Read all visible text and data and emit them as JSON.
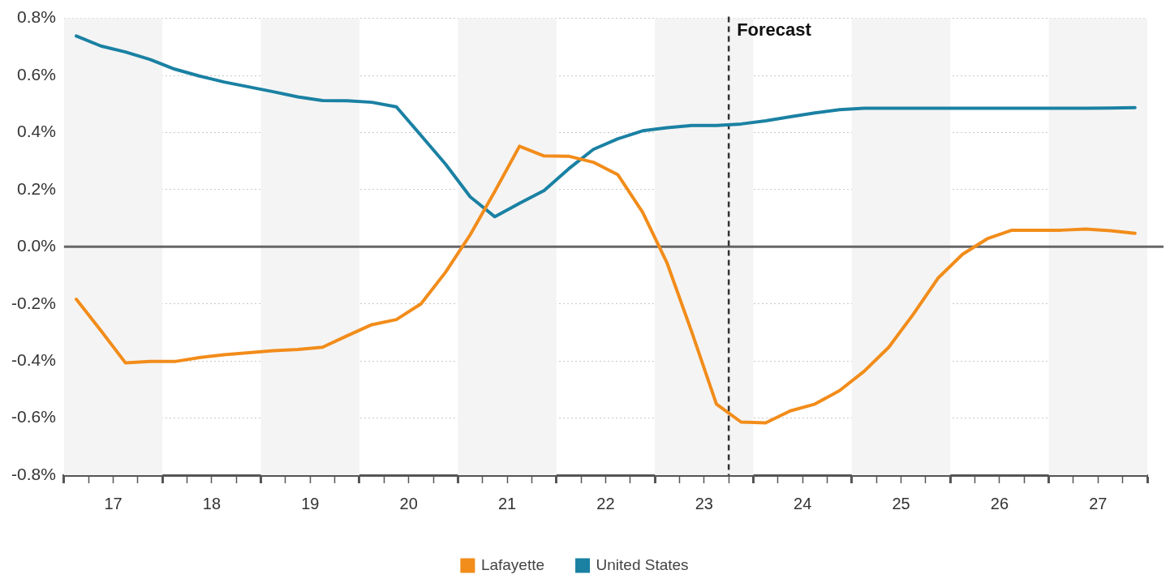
{
  "chart_data": {
    "type": "line",
    "x": [
      17.125,
      17.375,
      17.625,
      17.875,
      18.125,
      18.375,
      18.625,
      18.875,
      19.125,
      19.375,
      19.625,
      19.875,
      20.125,
      20.375,
      20.625,
      20.875,
      21.125,
      21.375,
      21.625,
      21.875,
      22.125,
      22.375,
      22.625,
      22.875,
      23.125,
      23.375,
      23.625,
      23.875,
      24.125,
      24.375,
      24.625,
      24.875,
      25.125,
      25.375,
      25.625,
      25.875,
      26.125,
      26.375,
      26.625,
      26.875,
      27.125,
      27.375,
      27.625,
      27.875
    ],
    "series": [
      {
        "name": "Lafayette",
        "color": "#f28c1a",
        "values": [
          -0.184,
          -0.294,
          -0.407,
          -0.402,
          -0.402,
          -0.388,
          -0.378,
          -0.371,
          -0.364,
          -0.36,
          -0.352,
          -0.312,
          -0.273,
          -0.255,
          -0.2,
          -0.089,
          0.042,
          0.194,
          0.352,
          0.318,
          0.317,
          0.296,
          0.252,
          0.121,
          -0.058,
          -0.299,
          -0.551,
          -0.614,
          -0.617,
          -0.575,
          -0.551,
          -0.504,
          -0.436,
          -0.352,
          -0.236,
          -0.11,
          -0.026,
          0.028,
          0.058,
          0.058,
          0.058,
          0.062,
          0.056,
          0.047
        ]
      },
      {
        "name": "United States",
        "color": "#1a81a3",
        "values": [
          0.738,
          0.703,
          0.682,
          0.656,
          0.622,
          0.598,
          0.577,
          0.56,
          0.543,
          0.525,
          0.512,
          0.511,
          0.506,
          0.49,
          0.39,
          0.289,
          0.175,
          0.105,
          0.152,
          0.197,
          0.273,
          0.341,
          0.378,
          0.406,
          0.417,
          0.425,
          0.425,
          0.43,
          0.441,
          0.455,
          0.469,
          0.48,
          0.485,
          0.485,
          0.485,
          0.485,
          0.485,
          0.485,
          0.485,
          0.485,
          0.485,
          0.485,
          0.486,
          0.487
        ]
      }
    ],
    "xlim": [
      17,
      28
    ],
    "xticks": [
      {
        "value": 17,
        "label": null
      },
      {
        "value": 17.25,
        "label": null
      },
      {
        "value": 17.5,
        "label": "17"
      },
      {
        "value": 17.75,
        "label": null
      },
      {
        "value": 18,
        "label": null
      },
      {
        "value": 18.25,
        "label": null
      },
      {
        "value": 18.5,
        "label": "18"
      },
      {
        "value": 18.75,
        "label": null
      },
      {
        "value": 19,
        "label": null
      },
      {
        "value": 19.25,
        "label": null
      },
      {
        "value": 19.5,
        "label": "19"
      },
      {
        "value": 19.75,
        "label": null
      },
      {
        "value": 20,
        "label": null
      },
      {
        "value": 20.25,
        "label": null
      },
      {
        "value": 20.5,
        "label": "20"
      },
      {
        "value": 20.75,
        "label": null
      },
      {
        "value": 21,
        "label": null
      },
      {
        "value": 21.25,
        "label": null
      },
      {
        "value": 21.5,
        "label": "21"
      },
      {
        "value": 21.75,
        "label": null
      },
      {
        "value": 22,
        "label": null
      },
      {
        "value": 22.25,
        "label": null
      },
      {
        "value": 22.5,
        "label": "22"
      },
      {
        "value": 22.75,
        "label": null
      },
      {
        "value": 23,
        "label": null
      },
      {
        "value": 23.25,
        "label": null
      },
      {
        "value": 23.5,
        "label": "23"
      },
      {
        "value": 23.75,
        "label": null
      },
      {
        "value": 24,
        "label": null
      },
      {
        "value": 24.25,
        "label": null
      },
      {
        "value": 24.5,
        "label": "24"
      },
      {
        "value": 24.75,
        "label": null
      },
      {
        "value": 25,
        "label": null
      },
      {
        "value": 25.25,
        "label": null
      },
      {
        "value": 25.5,
        "label": "25"
      },
      {
        "value": 25.75,
        "label": null
      },
      {
        "value": 26,
        "label": null
      },
      {
        "value": 26.25,
        "label": null
      },
      {
        "value": 26.5,
        "label": "26"
      },
      {
        "value": 26.75,
        "label": null
      },
      {
        "value": 27,
        "label": null
      },
      {
        "value": 27.25,
        "label": null
      },
      {
        "value": 27.5,
        "label": "27"
      },
      {
        "value": 27.75,
        "label": null
      },
      {
        "value": 28,
        "label": null
      }
    ],
    "ylim": [
      -0.8,
      0.8
    ],
    "yticks": [
      {
        "value": -0.8,
        "label": "-0.8%"
      },
      {
        "value": -0.6,
        "label": "-0.6%"
      },
      {
        "value": -0.4,
        "label": "-0.4%"
      },
      {
        "value": -0.2,
        "label": "-0.2%"
      },
      {
        "value": 0,
        "label": "0.0%"
      },
      {
        "value": 0.2,
        "label": "0.2%"
      },
      {
        "value": 0.4,
        "label": "0.4%"
      },
      {
        "value": 0.6,
        "label": "0.6%"
      },
      {
        "value": 0.8,
        "label": "0.8%"
      }
    ],
    "grid": "y",
    "legend": "bottom",
    "ref_lines": [
      {
        "axis": "y",
        "value": 0,
        "color": "#666666",
        "line_style": "solid"
      },
      {
        "axis": "x",
        "value": 23.75,
        "label": "Forecast",
        "color": "#333333",
        "line_style": "dashed"
      }
    ],
    "bands": [
      {
        "axis": "x",
        "from": 17,
        "to": 18,
        "color": "#f4f4f4"
      },
      {
        "axis": "x",
        "from": 19,
        "to": 20,
        "color": "#f4f4f4"
      },
      {
        "axis": "x",
        "from": 21,
        "to": 22,
        "color": "#f4f4f4"
      },
      {
        "axis": "x",
        "from": 23,
        "to": 24,
        "color": "#f4f4f4"
      },
      {
        "axis": "x",
        "from": 25,
        "to": 26,
        "color": "#f4f4f4"
      },
      {
        "axis": "x",
        "from": 27,
        "to": 28,
        "color": "#f4f4f4"
      }
    ]
  }
}
